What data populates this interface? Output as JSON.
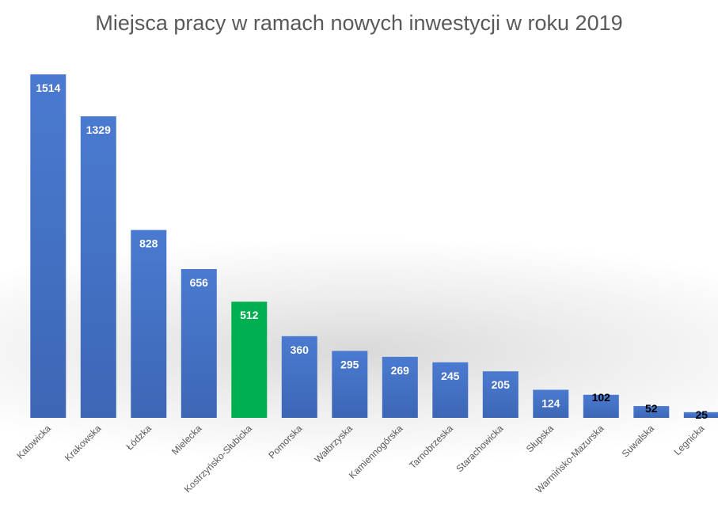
{
  "chart_data": {
    "type": "bar",
    "title": "Miejsca pracy w ramach nowych inwestycji w roku 2019",
    "xlabel": "",
    "ylabel": "",
    "ylim": [
      0,
      1514
    ],
    "grid": false,
    "legend": "none",
    "categories": [
      "Katowicka",
      "Krakowska",
      "Łódzka",
      "Mielecka",
      "Kostrzyńsko-Słubicka",
      "Pomorska",
      "Wałbrzyska",
      "Kamiennogórska",
      "Tarnobrzeska",
      "Starachowicka",
      "Słupska",
      "Warmińsko-Mazurska",
      "Suwalska",
      "Legnicka"
    ],
    "values": [
      1514,
      1329,
      828,
      656,
      512,
      360,
      295,
      269,
      245,
      205,
      124,
      102,
      52,
      25
    ],
    "data_labels": [
      "1514",
      "1329",
      "828",
      "656",
      "512",
      "360",
      "295",
      "269",
      "245",
      "205",
      "124",
      "102",
      "52",
      "25"
    ],
    "colors": {
      "bar": "#4472c4",
      "bar_highlight": "#00b050",
      "label_inside": "#ffffff",
      "label_outside": "#000000"
    },
    "highlight_index": 4
  }
}
